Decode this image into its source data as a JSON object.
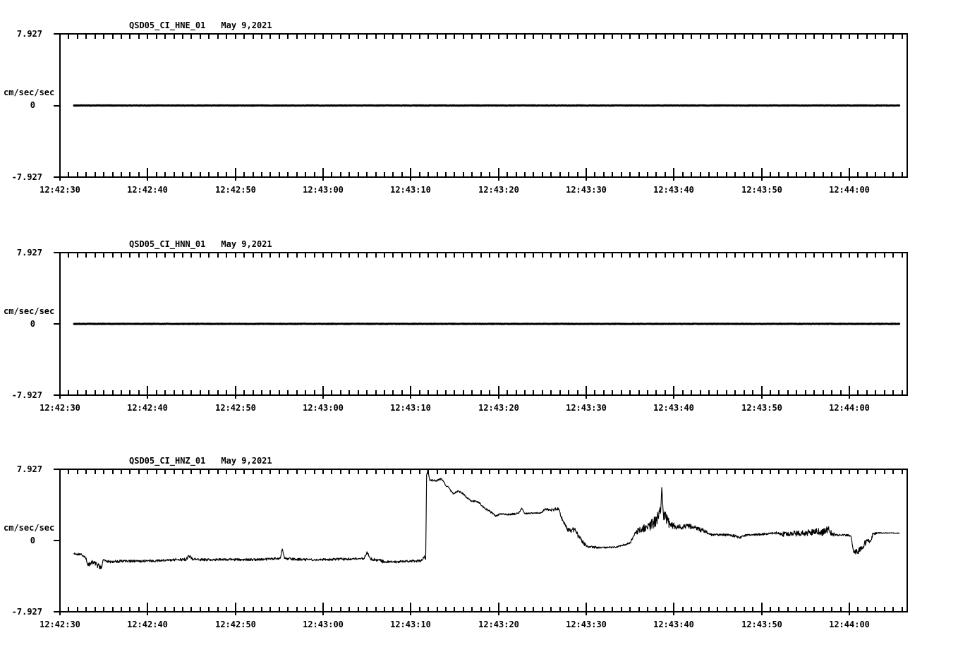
{
  "page": {
    "background": "#ffffff",
    "foreground": "#000000"
  },
  "chart_data": {
    "type": "line",
    "kind": "seismogram-3-channel",
    "ylabel": "cm/sec/sec",
    "yticks": [
      "7.927",
      "0",
      "-7.927"
    ],
    "ylim": [
      -7.927,
      7.927
    ],
    "xticklabels": [
      "12:42:30",
      "12:42:40",
      "12:42:50",
      "12:43:00",
      "12:43:10",
      "12:43:20",
      "12:43:30",
      "12:43:40",
      "12:43:50",
      "12:44:00"
    ],
    "x_major_interval_sec": 10,
    "x_minor_interval_sec": 1,
    "x_range_sec": [
      0,
      96.6
    ],
    "trace_t_range_sec": [
      1.6,
      95.7
    ],
    "panels": [
      {
        "id": "HNE",
        "title": "QSD05_CI_HNE_01",
        "date": "May 9,2021",
        "trace": {
          "style": "flat",
          "stroke_width": 2.8,
          "keypoints": [
            [
              1.6,
              0,
              0.025
            ],
            [
              95.7,
              0,
              0.025
            ]
          ]
        }
      },
      {
        "id": "HNN",
        "title": "QSD05_CI_HNN_01",
        "date": "May 9,2021",
        "trace": {
          "style": "flat",
          "stroke_width": 2.8,
          "keypoints": [
            [
              1.6,
              0,
              0.025
            ],
            [
              95.7,
              0,
              0.025
            ]
          ]
        }
      },
      {
        "id": "HNZ",
        "title": "QSD05_CI_HNZ_01",
        "date": "May 9,2021",
        "trace": {
          "style": "active",
          "stroke_width": 1.15,
          "keypoints": [
            [
              1.6,
              -1.45,
              0.12
            ],
            [
              2.4,
              -1.55,
              0.12
            ],
            [
              2.9,
              -1.9,
              0.2
            ],
            [
              3.2,
              -2.8,
              0.3
            ],
            [
              3.6,
              -2.3,
              0.25
            ],
            [
              4.2,
              -2.7,
              0.3
            ],
            [
              4.7,
              -3.1,
              0.2
            ],
            [
              4.9,
              -2.2,
              0.15
            ],
            [
              5.6,
              -2.35,
              0.15
            ],
            [
              7,
              -2.3,
              0.13
            ],
            [
              9,
              -2.3,
              0.13
            ],
            [
              11,
              -2.25,
              0.13
            ],
            [
              13,
              -2.15,
              0.15
            ],
            [
              14.4,
              -2.1,
              0.18
            ],
            [
              14.7,
              -1.75,
              0.18
            ],
            [
              15.3,
              -2.1,
              0.15
            ],
            [
              17,
              -2.15,
              0.13
            ],
            [
              19,
              -2.1,
              0.14
            ],
            [
              21,
              -2.15,
              0.13
            ],
            [
              23,
              -2.1,
              0.13
            ],
            [
              25.1,
              -2.0,
              0.14
            ],
            [
              25.35,
              -0.95,
              0.1
            ],
            [
              25.6,
              -2.0,
              0.14
            ],
            [
              27,
              -2.1,
              0.13
            ],
            [
              29,
              -2.15,
              0.12
            ],
            [
              31,
              -2.1,
              0.13
            ],
            [
              33,
              -2.05,
              0.13
            ],
            [
              34.7,
              -2.0,
              0.15
            ],
            [
              35.0,
              -1.25,
              0.12
            ],
            [
              35.4,
              -2.05,
              0.15
            ],
            [
              36.4,
              -2.2,
              0.18
            ],
            [
              37,
              -2.4,
              0.15
            ],
            [
              38.5,
              -2.35,
              0.13
            ],
            [
              40,
              -2.3,
              0.13
            ],
            [
              41.2,
              -2.25,
              0.14
            ],
            [
              41.55,
              -1.7,
              0.15
            ],
            [
              41.7,
              -2.1,
              0.1
            ],
            [
              41.8,
              7.3,
              0.05
            ],
            [
              41.95,
              7.85,
              0.05
            ],
            [
              42.15,
              6.75,
              0.12
            ],
            [
              42.8,
              6.65,
              0.12
            ],
            [
              43.5,
              6.85,
              0.1
            ],
            [
              44.1,
              6.0,
              0.15
            ],
            [
              44.9,
              5.2,
              0.12
            ],
            [
              45.3,
              5.5,
              0.1
            ],
            [
              45.9,
              5.25,
              0.1
            ],
            [
              46.4,
              4.75,
              0.12
            ],
            [
              47.0,
              4.4,
              0.1
            ],
            [
              47.7,
              4.3,
              0.1
            ],
            [
              48.4,
              3.6,
              0.12
            ],
            [
              49.2,
              3.1,
              0.1
            ],
            [
              49.7,
              2.7,
              0.1
            ],
            [
              50.1,
              2.95,
              0.08
            ],
            [
              51,
              2.9,
              0.1
            ],
            [
              52.3,
              3.0,
              0.08
            ],
            [
              52.65,
              3.6,
              0.08
            ],
            [
              53,
              3.0,
              0.08
            ],
            [
              54,
              3.05,
              0.08
            ],
            [
              54.9,
              3.1,
              0.1
            ],
            [
              55.3,
              3.5,
              0.12
            ],
            [
              56,
              3.4,
              0.16
            ],
            [
              56.85,
              3.55,
              0.15
            ],
            [
              57.15,
              2.6,
              0.25
            ],
            [
              57.7,
              1.5,
              0.3
            ],
            [
              58.2,
              1.0,
              0.3
            ],
            [
              58.65,
              1.3,
              0.25
            ],
            [
              59.1,
              0.5,
              0.25
            ],
            [
              59.7,
              -0.3,
              0.2
            ],
            [
              60.3,
              -0.7,
              0.12
            ],
            [
              61.5,
              -0.8,
              0.08
            ],
            [
              63.4,
              -0.75,
              0.08
            ],
            [
              64.2,
              -0.5,
              0.1
            ],
            [
              65,
              -0.3,
              0.15
            ],
            [
              65.6,
              0.9,
              0.35
            ],
            [
              66.4,
              1.25,
              0.45
            ],
            [
              67.2,
              1.6,
              0.6
            ],
            [
              68,
              2.2,
              0.8
            ],
            [
              68.45,
              3.0,
              0.6
            ],
            [
              68.62,
              5.9,
              0.15
            ],
            [
              68.8,
              2.9,
              0.6
            ],
            [
              69.2,
              2.4,
              0.65
            ],
            [
              69.6,
              1.85,
              0.4
            ],
            [
              70.2,
              1.4,
              0.3
            ],
            [
              71,
              1.5,
              0.3
            ],
            [
              72.2,
              1.55,
              0.25
            ],
            [
              73.4,
              1.05,
              0.2
            ],
            [
              74.4,
              0.6,
              0.15
            ],
            [
              75.5,
              0.65,
              0.14
            ],
            [
              77,
              0.5,
              0.12
            ],
            [
              77.5,
              0.3,
              0.12
            ],
            [
              78.2,
              0.6,
              0.12
            ],
            [
              79.5,
              0.65,
              0.12
            ],
            [
              80.6,
              0.75,
              0.12
            ],
            [
              81.6,
              0.85,
              0.15
            ],
            [
              82.3,
              0.7,
              0.28
            ],
            [
              83.5,
              0.8,
              0.33
            ],
            [
              84.5,
              0.75,
              0.33
            ],
            [
              85.5,
              0.9,
              0.33
            ],
            [
              86.3,
              1.0,
              0.38
            ],
            [
              87,
              0.9,
              0.38
            ],
            [
              87.6,
              1.25,
              0.45
            ],
            [
              88,
              0.8,
              0.25
            ],
            [
              88.4,
              0.6,
              0.1
            ],
            [
              89.9,
              0.6,
              0.08
            ],
            [
              90.2,
              0.45,
              0.08
            ],
            [
              90.5,
              -1.35,
              0.28
            ],
            [
              91,
              -1.2,
              0.35
            ],
            [
              91.5,
              -0.9,
              0.38
            ],
            [
              92,
              0.1,
              0.28
            ],
            [
              92.3,
              -0.25,
              0.22
            ],
            [
              92.7,
              0.7,
              0.12
            ],
            [
              93.2,
              0.85,
              0.05
            ],
            [
              95.7,
              0.82,
              0.05
            ]
          ]
        }
      }
    ]
  }
}
